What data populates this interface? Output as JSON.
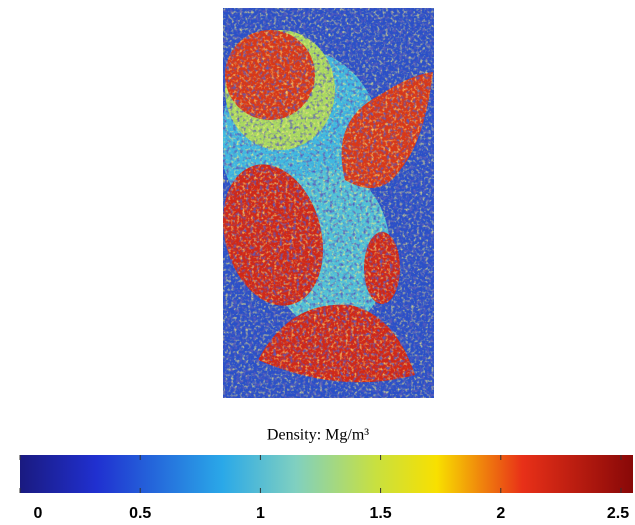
{
  "chart_data": {
    "type": "heatmap",
    "colorbar_label": "Density: Mg/m³",
    "clim": [
      0,
      2.55
    ],
    "cticks": [
      0,
      0.5,
      1,
      1.5,
      2,
      2.5
    ],
    "colormap": "jet"
  }
}
